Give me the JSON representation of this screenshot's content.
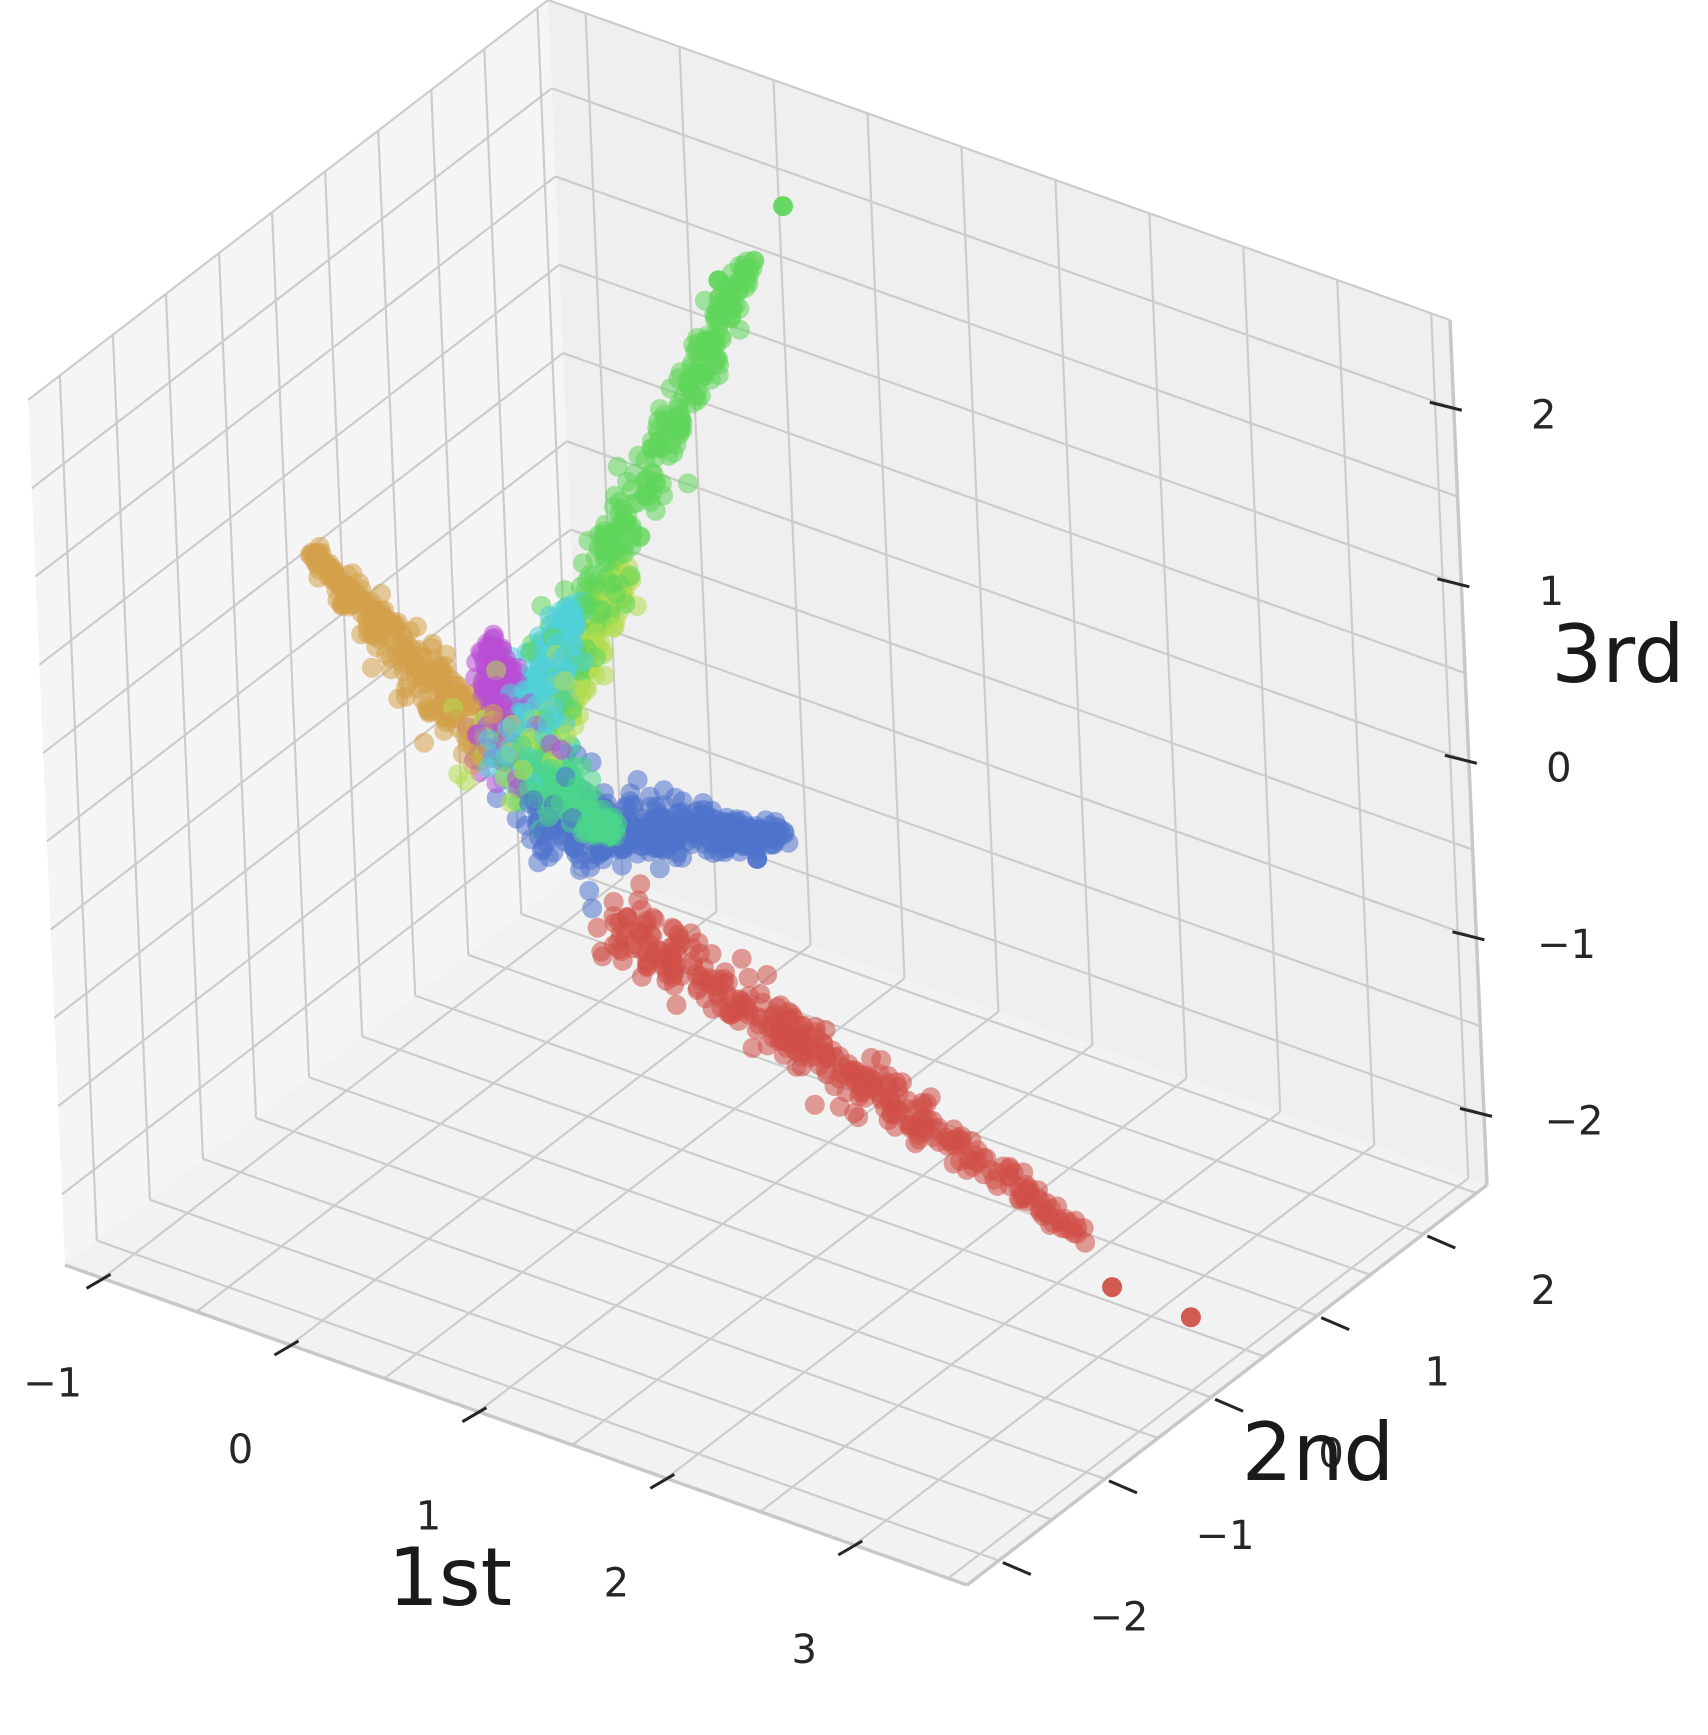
{
  "chart_data": {
    "type": "scatter",
    "projection": "3d",
    "title": "",
    "xlabel": "1st",
    "ylabel": "2nd",
    "zlabel": "3rd",
    "xlim": [
      -1.2,
      3.6
    ],
    "ylim": [
      -2.3,
      2.6
    ],
    "zlim": [
      -2.4,
      2.5
    ],
    "xticks": [
      -1,
      0,
      1,
      2,
      3
    ],
    "yticks": [
      -2,
      -1,
      0,
      1,
      2
    ],
    "zticks": [
      -2,
      -1,
      0,
      1,
      2
    ],
    "xtick_labels": [
      "−1",
      "0",
      "1",
      "2",
      "3"
    ],
    "ytick_labels": [
      "−2",
      "−1",
      "0",
      "1",
      "2"
    ],
    "ztick_labels": [
      "−2",
      "−1",
      "0",
      "1",
      "2"
    ],
    "grid": true,
    "legend": "none",
    "point_alpha": 0.55,
    "series": [
      {
        "color": "#d4a04a",
        "count": 260,
        "start": [
          -0.15,
          0.0,
          -0.1
        ],
        "end": [
          -1.1,
          0.05,
          0.6
        ],
        "spread": 0.05
      },
      {
        "color": "#5fd65a",
        "count": 340,
        "start": [
          0.0,
          0.0,
          -0.1
        ],
        "end": [
          0.0,
          2.3,
          1.6
        ],
        "spread": 0.05
      },
      {
        "color": "#b3dc50",
        "count": 280,
        "start": [
          0.0,
          0.0,
          -0.1
        ],
        "end": [
          0.0,
          1.05,
          0.45
        ],
        "spread": 0.06
      },
      {
        "color": "#50cfd8",
        "count": 260,
        "start": [
          0.0,
          0.0,
          -0.1
        ],
        "end": [
          0.0,
          0.55,
          0.45
        ],
        "spread": 0.05
      },
      {
        "color": "#b84fd4",
        "count": 180,
        "start": [
          -0.05,
          0.0,
          -0.1
        ],
        "end": [
          -0.2,
          0.15,
          0.35
        ],
        "spread": 0.05
      },
      {
        "color": "#4e73cc",
        "count": 380,
        "start": [
          0.15,
          0.0,
          -0.45
        ],
        "end": [
          0.75,
          1.1,
          -0.8
        ],
        "spread": 0.07
      },
      {
        "color": "#4bd68a",
        "count": 200,
        "start": [
          0.0,
          0.0,
          -0.15
        ],
        "end": [
          0.45,
          0.05,
          -0.4
        ],
        "spread": 0.05
      },
      {
        "color": "#cf5148",
        "count": 360,
        "start": [
          0.6,
          -0.1,
          -0.8
        ],
        "end": [
          3.0,
          -0.1,
          -1.65
        ],
        "spread": 0.05
      }
    ],
    "outliers": [
      {
        "color": "#5fd65a",
        "point": [
          0.2,
          2.3,
          2.0
        ]
      },
      {
        "color": "#5fd65a",
        "point": [
          0.1,
          1.85,
          1.75
        ]
      },
      {
        "color": "#cf5148",
        "point": [
          3.15,
          -0.1,
          -1.9
        ]
      },
      {
        "color": "#cf5148",
        "point": [
          3.45,
          0.1,
          -2.05
        ]
      },
      {
        "color": "#4e73cc",
        "point": [
          0.65,
          1.05,
          -0.95
        ]
      }
    ]
  }
}
